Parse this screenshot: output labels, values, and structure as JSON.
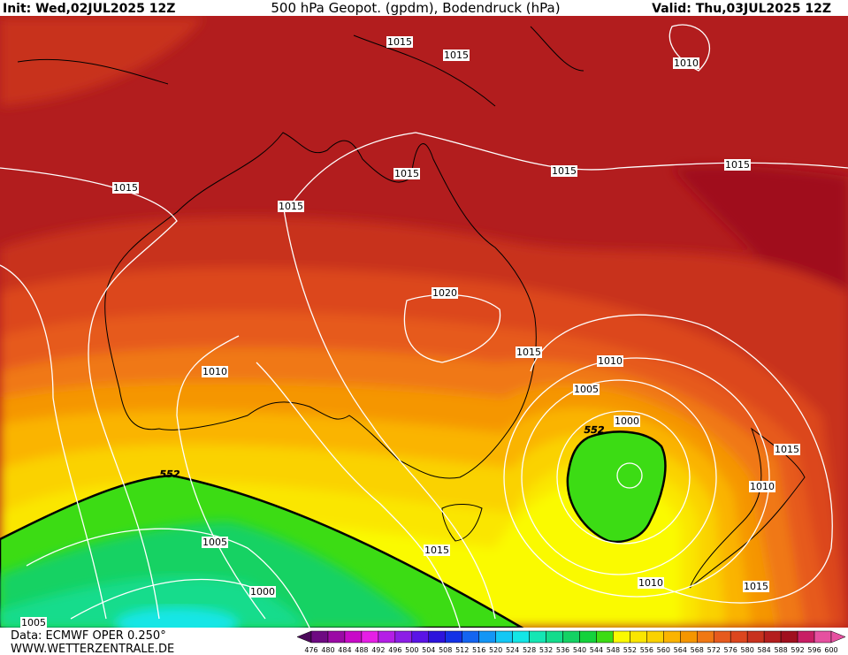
{
  "header": {
    "init": "Init: Wed,02JUL2025 12Z",
    "title": "500 hPa Geopot. (gpdm), Bodendruck (hPa)",
    "valid": "Valid: Thu,03JUL2025 12Z"
  },
  "map": {
    "isobar_labels": [
      1015,
      1015,
      1010,
      1015,
      1015,
      1015,
      1015,
      1015,
      1020,
      1015,
      1010,
      1010,
      1005,
      1000,
      1015,
      1010,
      1005,
      1015,
      1000,
      1010,
      1015,
      1005
    ],
    "geopotential_labels": [
      552,
      552
    ]
  },
  "legend": {
    "levels": [
      476,
      480,
      484,
      488,
      492,
      496,
      500,
      504,
      508,
      512,
      516,
      520,
      524,
      528,
      532,
      536,
      540,
      544,
      548,
      552,
      556,
      560,
      564,
      568,
      572,
      576,
      580,
      584,
      588,
      592,
      596,
      600
    ],
    "colors": [
      "#4b0a5a",
      "#6e0a82",
      "#9b0aa5",
      "#c80ac8",
      "#e61ee6",
      "#b41ee6",
      "#8c1ee6",
      "#5a14e6",
      "#2d14dc",
      "#1432e6",
      "#1464f0",
      "#1496f5",
      "#14c8f5",
      "#14e6e6",
      "#14e6b4",
      "#14dc8c",
      "#14d264",
      "#14d23c",
      "#3cdc14",
      "#fafa00",
      "#fae600",
      "#fad200",
      "#fab400",
      "#f59600",
      "#f07814",
      "#e65a1e",
      "#dc461e",
      "#c8321e",
      "#b41e1e",
      "#a00f1e",
      "#c81e64",
      "#e650a0"
    ]
  },
  "footer": {
    "source": "Data: ECMWF OPER 0.250°",
    "site": "WWW.WETTERZENTRALE.DE"
  }
}
